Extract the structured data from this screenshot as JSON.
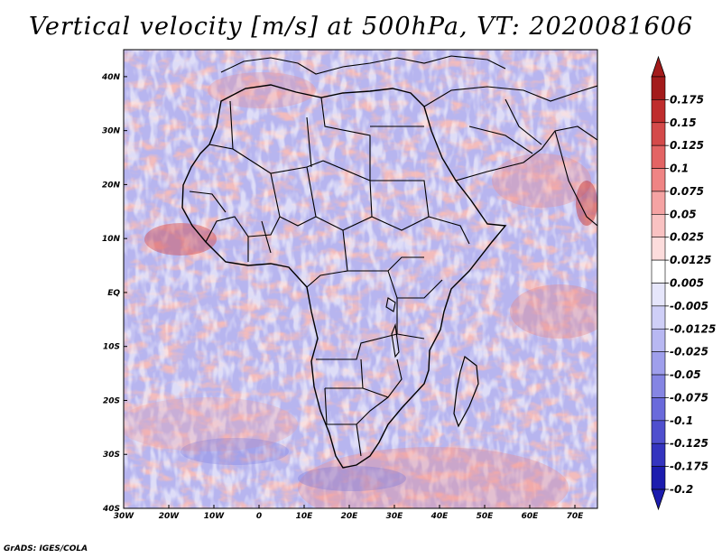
{
  "title": "Vertical velocity [m/s] at 500hPa, VT: 2020081606",
  "footer": "GrADS: IGES/COLA",
  "map": {
    "region": "Africa",
    "variable": "Vertical velocity",
    "units": "m/s",
    "level": "500hPa",
    "valid_time": "2020081606",
    "lon_range": [
      -30,
      75
    ],
    "lat_range": [
      -40,
      45
    ],
    "lat_labels": [
      "40N",
      "30N",
      "20N",
      "10N",
      "EQ",
      "10S",
      "20S",
      "30S",
      "40S"
    ],
    "lon_labels": [
      "30W",
      "20W",
      "10W",
      "0",
      "10E",
      "20E",
      "30E",
      "40E",
      "50E",
      "60E",
      "70E"
    ]
  },
  "colorbar": {
    "labels": [
      "0.175",
      "0.15",
      "0.125",
      "0.1",
      "0.075",
      "0.05",
      "0.025",
      "0.0125",
      "0.005",
      "-0.005",
      "-0.0125",
      "-0.025",
      "-0.05",
      "-0.075",
      "-0.1",
      "-0.125",
      "-0.175",
      "-0.2"
    ],
    "colors": [
      "#a31b1b",
      "#bf2d2d",
      "#d44a4a",
      "#e36464",
      "#ef8484",
      "#f5a3a3",
      "#f9c2c2",
      "#fcdcdc",
      "#ffffff",
      "#e6e6fb",
      "#cfcff7",
      "#b8b8f2",
      "#9f9fec",
      "#8585e3",
      "#6a6adb",
      "#4f4fce",
      "#3434bf",
      "#1c1cae"
    ],
    "top_tip_color": "#a31b1b",
    "bottom_tip_color": "#1c1cae"
  }
}
